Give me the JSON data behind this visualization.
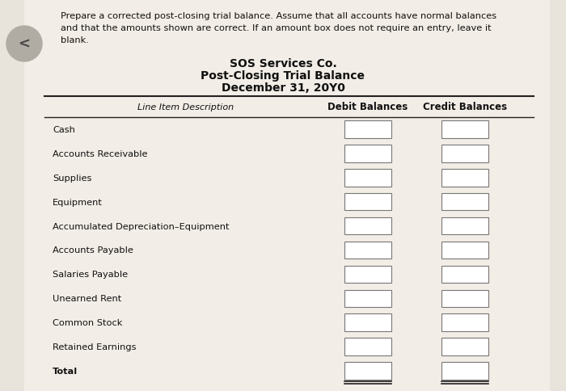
{
  "title1": "SOS Services Co.",
  "title2": "Post-Closing Trial Balance",
  "title3": "December 31, 20Y0",
  "instruction_line1": "Prepare a corrected post-closing trial balance. Assume that all accounts have normal balances",
  "instruction_line2": "and that the amounts shown are correct. If an amount box does not require an entry, leave it",
  "instruction_line3": "blank.",
  "col_header_desc": "Line Item Description",
  "col_header_debit": "Debit Balances",
  "col_header_credit": "Credit Balances",
  "line_items": [
    "Cash",
    "Accounts Receivable",
    "Supplies",
    "Equipment",
    "Accumulated Depreciation–Equipment",
    "Accounts Payable",
    "Salaries Payable",
    "Unearned Rent",
    "Common Stock",
    "Retained Earnings",
    "Total"
  ],
  "bg_color": "#e8e4dc",
  "content_bg": "#f2ede6",
  "box_color": "#ffffff",
  "box_edge_color": "#777777",
  "text_color": "#111111",
  "line_color": "#222222",
  "fig_width": 7.0,
  "fig_height": 4.85,
  "dpi": 100
}
